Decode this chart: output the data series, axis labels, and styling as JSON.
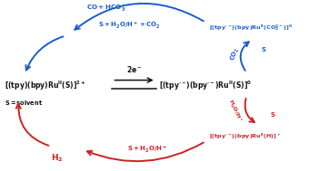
{
  "bg_color": "#ffffff",
  "blue_color": "#1a5dcc",
  "red_color": "#cc2222",
  "black_color": "#111111",
  "fig_w": 3.4,
  "fig_h": 1.89,
  "dpi": 100
}
